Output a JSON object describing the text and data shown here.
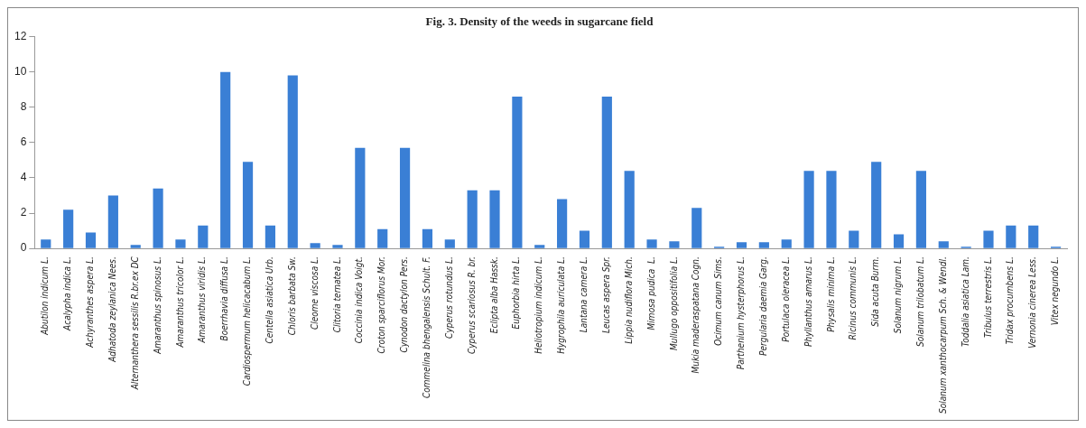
{
  "chart_data": {
    "type": "bar",
    "title": "Fig. 3. Density of the weeds in sugarcane field",
    "categories": [
      "Abutilon indicum L.",
      "Acalypha indica L.",
      "Achyranthes aspera L.",
      "Adhatoda zeylanica Nees.",
      "Alternanthera sessilis R.br.ex DC",
      "Amaranthus spinosus L.",
      "Amaranthus tricolor L.",
      "Amaranthus viridis L.",
      "Boerrhavia diffusa L.",
      "Cardiospermum helicacabum L.",
      "Centella asiatica Urb.",
      "Chloris barbata Sw.",
      "Cleome viscosa L.",
      "Clitoria ternatea L.",
      "Coccinia indica Voigt.",
      "Croton sparciflorus Mor.",
      "Cynodon dactylon Pers.",
      "Commelina bhengalensis Schult. F.",
      "Cyperus rotundus L.",
      "Cyperus scariosus R. br.",
      "Eclipta alba Hassk.",
      "Euphorbia hirta L.",
      "Heliotropium indicum L.",
      "Hygrophila auriculata L.",
      "Lantana camera L.",
      "Leucas aspera Spr.",
      "Lippia nudiflora Mich.",
      "Mimosa pudica  L.",
      "Mullugo oppositifolia L.",
      "Mukia maderaspatana Cogn.",
      "Ocimum canum Sims.",
      "Parthenium hysterphorus L.",
      "Pergularia daemia Garg.",
      "Portulaca oleracea L.",
      "Phyllanthus amarus L.",
      "Physalis minima L.",
      "Ricinus communis L.",
      "Sida acuta Burm.",
      "Solanum nigrum L.",
      "Solanum trilobatum L.",
      "Solanum xanthocarpum Sch. & Wendl.",
      "Toddalia asiatica Lam.",
      "Tribulus terrestris L.",
      "Tridax procumbens L.",
      "Vernonia cinerea Less.",
      "Vitex negundo L."
    ],
    "values": [
      0.5,
      2.2,
      0.9,
      3.0,
      0.2,
      3.4,
      0.5,
      1.3,
      10,
      4.9,
      1.3,
      9.8,
      0.3,
      0.2,
      5.7,
      1.1,
      5.7,
      1.1,
      0.5,
      3.3,
      3.3,
      8.6,
      0.2,
      2.8,
      1.0,
      8.6,
      4.4,
      0.5,
      0.4,
      2.3,
      0.1,
      0.35,
      0.35,
      0.5,
      4.4,
      4.4,
      1.0,
      4.9,
      0.8,
      4.4,
      0.4,
      0.1,
      1.0,
      1.3,
      1.3,
      0.1
    ],
    "color": "#3a7fd5",
    "ylim": [
      0,
      12
    ],
    "yticks": [
      0,
      2,
      4,
      6,
      8,
      10,
      12
    ],
    "grid": false,
    "legend": false
  }
}
